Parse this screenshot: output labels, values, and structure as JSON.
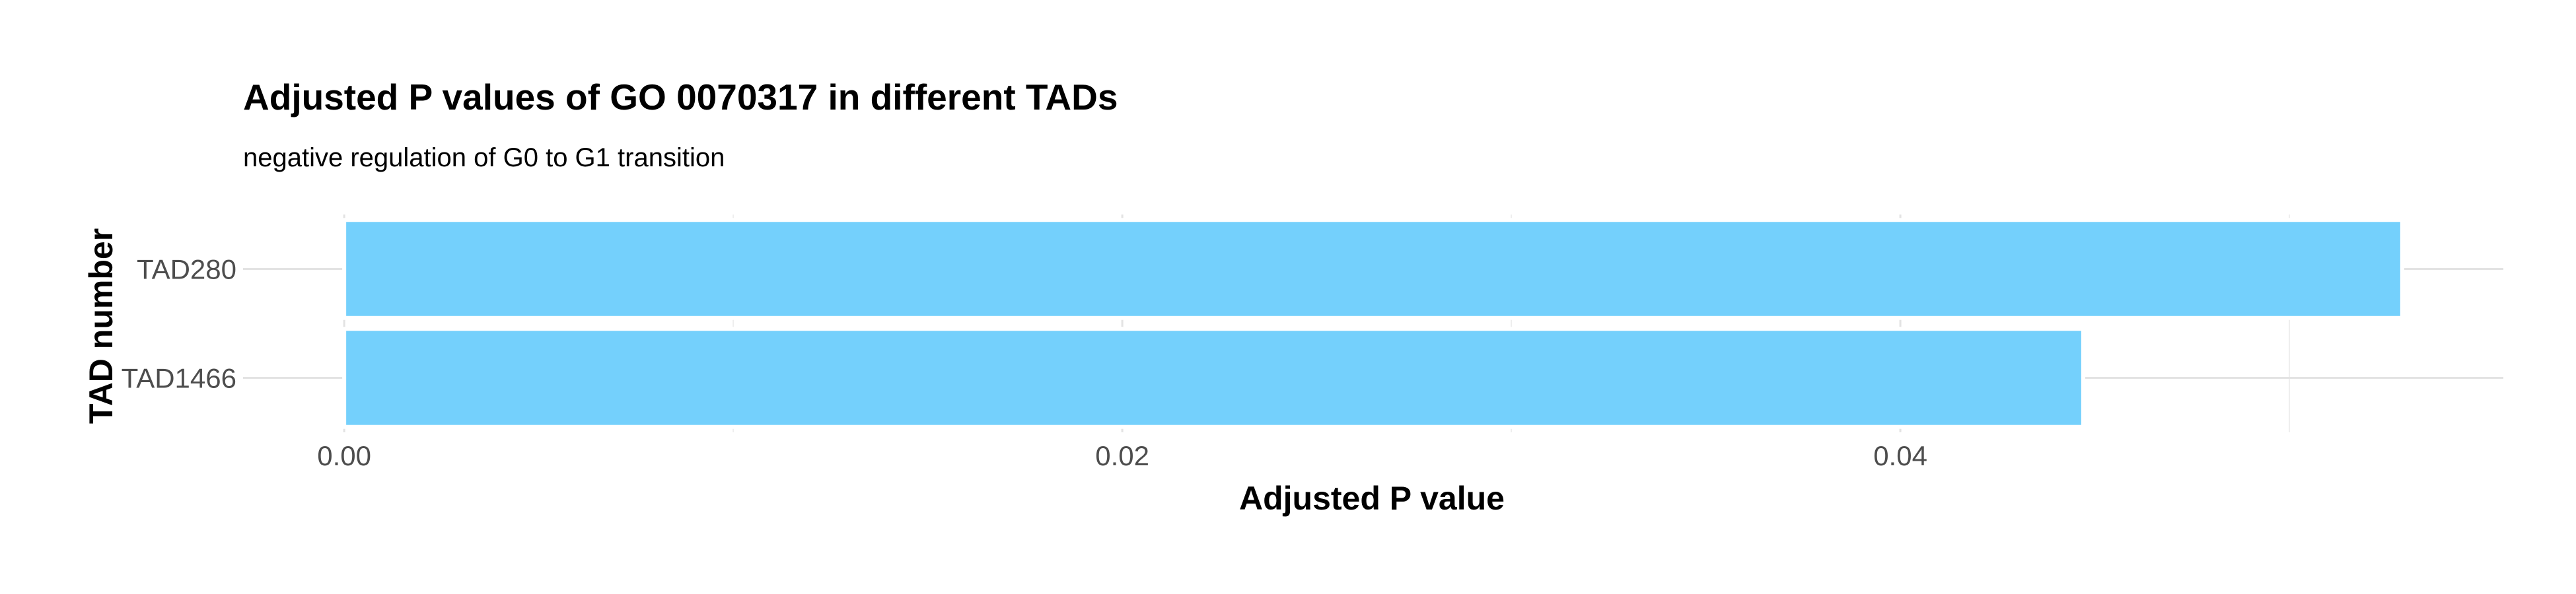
{
  "chart_data": {
    "type": "bar",
    "orientation": "horizontal",
    "title": "Adjusted P values of GO 0070317 in different TADs",
    "subtitle": "negative regulation of G0 to G1 transition",
    "xlabel": "Adjusted P value",
    "ylabel": "TAD number",
    "categories": [
      "TAD280",
      "TAD1466"
    ],
    "values": [
      0.0529,
      0.0447
    ],
    "xlim": [
      -0.0026,
      0.0555
    ],
    "xticks": [
      0.0,
      0.02,
      0.04
    ],
    "xtick_labels": [
      "0.00",
      "0.02",
      "0.04"
    ],
    "minor_xticks": [
      0.01,
      0.03,
      0.05
    ],
    "bar_color": "#74D0FC",
    "grid": true,
    "legend": "none"
  }
}
